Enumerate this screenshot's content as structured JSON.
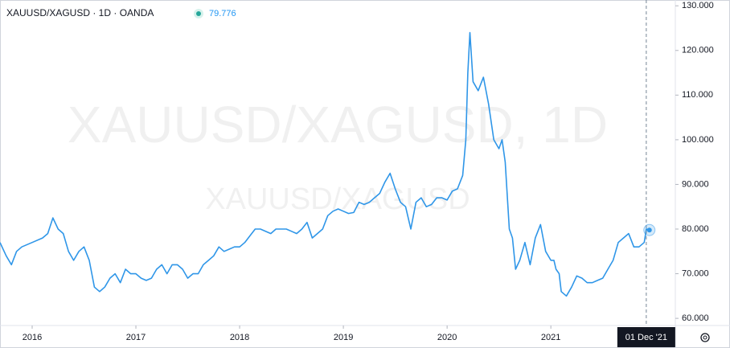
{
  "chart_data": {
    "type": "line",
    "title": "XAUUSD/XAGUSD · 1D · OANDA",
    "watermark": "XAUUSD/XAGUSD, 1D",
    "watermark_symbol": "XAUUSD/XAGUSD",
    "color": "#2f96e8",
    "last_price": {
      "value": 79.776,
      "label": "79.776"
    },
    "crosshair": {
      "value": 2021.92,
      "label": "01 Dec '21"
    },
    "xlim": [
      2015.69,
      2022.2
    ],
    "xticks": [
      2016,
      2017,
      2018,
      2019,
      2020,
      2021
    ],
    "ylim": [
      58.4,
      131.3
    ],
    "yticks": [
      {
        "value": 60,
        "label": "60.000"
      },
      {
        "value": 70,
        "label": "70.000"
      },
      {
        "value": 80,
        "label": "80.000"
      },
      {
        "value": 90,
        "label": "90.000"
      },
      {
        "value": 100,
        "label": "100.000"
      },
      {
        "value": 110,
        "label": "110.000"
      },
      {
        "value": 120,
        "label": "120.000"
      },
      {
        "value": 130,
        "label": "130.000"
      }
    ],
    "x": [
      2015.69,
      2015.75,
      2015.8,
      2015.85,
      2015.9,
      2016.0,
      2016.1,
      2016.15,
      2016.2,
      2016.25,
      2016.3,
      2016.35,
      2016.4,
      2016.45,
      2016.5,
      2016.55,
      2016.6,
      2016.65,
      2016.7,
      2016.75,
      2016.8,
      2016.85,
      2016.9,
      2016.95,
      2017.0,
      2017.05,
      2017.1,
      2017.15,
      2017.2,
      2017.25,
      2017.3,
      2017.35,
      2017.4,
      2017.45,
      2017.5,
      2017.55,
      2017.6,
      2017.65,
      2017.7,
      2017.75,
      2017.8,
      2017.85,
      2017.9,
      2017.95,
      2018.0,
      2018.05,
      2018.1,
      2018.15,
      2018.2,
      2018.3,
      2018.35,
      2018.4,
      2018.45,
      2018.5,
      2018.55,
      2018.6,
      2018.65,
      2018.7,
      2018.75,
      2018.8,
      2018.85,
      2018.9,
      2018.95,
      2019.0,
      2019.05,
      2019.1,
      2019.15,
      2019.2,
      2019.25,
      2019.3,
      2019.35,
      2019.4,
      2019.45,
      2019.5,
      2019.55,
      2019.6,
      2019.65,
      2019.7,
      2019.75,
      2019.8,
      2019.85,
      2019.9,
      2019.95,
      2020.0,
      2020.05,
      2020.1,
      2020.15,
      2020.18,
      2020.2,
      2020.22,
      2020.25,
      2020.3,
      2020.35,
      2020.4,
      2020.45,
      2020.5,
      2020.53,
      2020.56,
      2020.6,
      2020.63,
      2020.66,
      2020.7,
      2020.75,
      2020.8,
      2020.85,
      2020.9,
      2020.95,
      2021.0,
      2021.03,
      2021.05,
      2021.08,
      2021.1,
      2021.15,
      2021.2,
      2021.25,
      2021.3,
      2021.35,
      2021.4,
      2021.45,
      2021.5,
      2021.55,
      2021.6,
      2021.65,
      2021.7,
      2021.75,
      2021.8,
      2021.85,
      2021.9,
      2021.92,
      2021.95
    ],
    "values": [
      77,
      74,
      72,
      75,
      76,
      77,
      78,
      79,
      82.5,
      80,
      79,
      75,
      73,
      75,
      76,
      73,
      67,
      66,
      67,
      69,
      70,
      68,
      71,
      70,
      70,
      69,
      68.5,
      69,
      71,
      72,
      70,
      72,
      72,
      71,
      69,
      70,
      70,
      72,
      73,
      74,
      76,
      75,
      75.5,
      76,
      76,
      77,
      78.5,
      80,
      80,
      79,
      80,
      80,
      80,
      79.5,
      79,
      80,
      81.5,
      78,
      79,
      80,
      83,
      84,
      84.5,
      84,
      83.5,
      83.7,
      86,
      85.5,
      86,
      87,
      88,
      90.5,
      92.5,
      89,
      86,
      85,
      80,
      86,
      87,
      85,
      85.5,
      87,
      87,
      86.5,
      88.5,
      89,
      92,
      100,
      115,
      124,
      113,
      111,
      114,
      108,
      100,
      98,
      100,
      95,
      80,
      78,
      71,
      73,
      77,
      72,
      78,
      81,
      75,
      73,
      73,
      71,
      70,
      66,
      65,
      67,
      69.5,
      69,
      68,
      68,
      68.5,
      69,
      71,
      73,
      77,
      78,
      79,
      76,
      76,
      77,
      80,
      79.776
    ]
  }
}
